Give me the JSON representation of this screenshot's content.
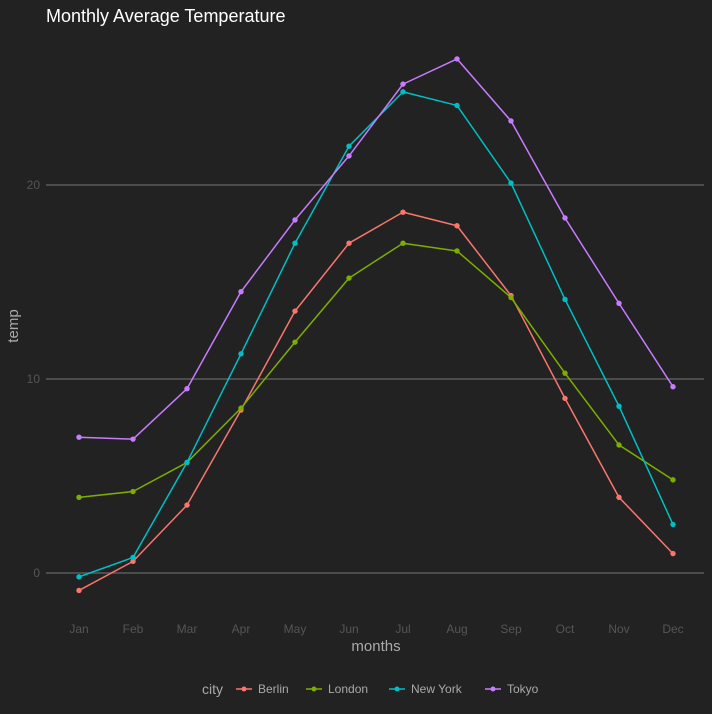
{
  "chart_data": {
    "type": "line",
    "title": "Monthly Average Temperature",
    "xlabel": "months",
    "ylabel": "temp",
    "categories": [
      "Jan",
      "Feb",
      "Mar",
      "Apr",
      "May",
      "Jun",
      "Jul",
      "Aug",
      "Sep",
      "Oct",
      "Nov",
      "Dec"
    ],
    "y_ticks": [
      0,
      10,
      20
    ],
    "y_tick_labels": [
      "0",
      "10",
      "20"
    ],
    "ylim": [
      -2,
      28
    ],
    "grid": true,
    "legend": {
      "title": "city",
      "position": "bottom"
    },
    "series": [
      {
        "name": "Berlin",
        "color": "#f8766d",
        "values": [
          -0.9,
          0.6,
          3.5,
          8.4,
          13.5,
          17.0,
          18.6,
          17.9,
          14.3,
          9.0,
          3.9,
          1.0
        ]
      },
      {
        "name": "London",
        "color": "#7cae00",
        "values": [
          3.9,
          4.2,
          5.7,
          8.5,
          11.9,
          15.2,
          17.0,
          16.6,
          14.2,
          10.3,
          6.6,
          4.8
        ]
      },
      {
        "name": "New York",
        "color": "#00bfc4",
        "values": [
          -0.2,
          0.8,
          5.7,
          11.3,
          17.0,
          22.0,
          24.8,
          24.1,
          20.1,
          14.1,
          8.6,
          2.5
        ]
      },
      {
        "name": "Tokyo",
        "color": "#c77cff",
        "values": [
          7.0,
          6.9,
          9.5,
          14.5,
          18.2,
          21.5,
          25.2,
          26.5,
          23.3,
          18.3,
          13.9,
          9.6
        ]
      }
    ]
  }
}
